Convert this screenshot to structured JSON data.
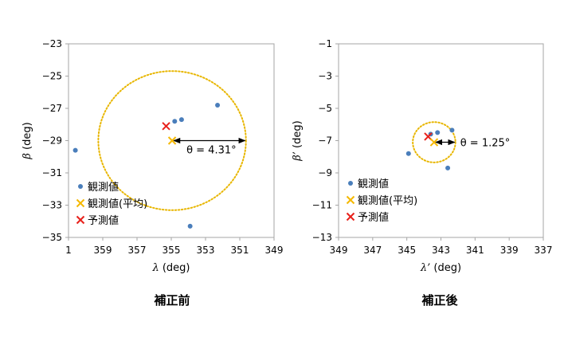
{
  "colors": {
    "observed": "#4a7ebb",
    "mean": "#f5b800",
    "predicted": "#e8211b",
    "circle": "#e8b600",
    "axis": "#a6a6a6",
    "arrow": "#000000"
  },
  "chart_data": [
    {
      "type": "scatter",
      "caption": "補正前",
      "xlabel_symbol": "λ",
      "xlabel_unit": "(deg)",
      "ylabel_symbol": "β",
      "ylabel_unit": "(deg)",
      "x_reversed": true,
      "xlim": [
        349,
        1
      ],
      "ylim": [
        -35,
        -23
      ],
      "x_ticks": [
        1,
        359,
        357,
        355,
        353,
        351,
        349
      ],
      "x_tick_labels": [
        "1",
        "359",
        "357",
        "355",
        "353",
        "351",
        "349"
      ],
      "y_ticks": [
        -23,
        -25,
        -27,
        -29,
        -31,
        -33,
        -35
      ],
      "y_tick_labels": [
        "−23",
        "−25",
        "−27",
        "−29",
        "−31",
        "−33",
        "−35"
      ],
      "observed": [
        [
          0.6,
          -29.6
        ],
        [
          354.8,
          -27.8
        ],
        [
          354.4,
          -27.7
        ],
        [
          352.3,
          -26.8
        ],
        [
          353.9,
          -34.3
        ]
      ],
      "mean": [
        354.95,
        -29.0
      ],
      "predicted": [
        355.3,
        -28.1
      ],
      "circle_radius": 4.31,
      "theta_label": "θ = 4.31°",
      "legend": [
        {
          "key": "observed",
          "label": "観測値"
        },
        {
          "key": "mean",
          "label": "観測値(平均)"
        },
        {
          "key": "predicted",
          "label": "予測値"
        }
      ],
      "legend_position": "bottom-left"
    },
    {
      "type": "scatter",
      "caption": "補正後",
      "xlabel_symbol": "λ’",
      "xlabel_unit": "(deg)",
      "ylabel_symbol": "β’",
      "ylabel_unit": "(deg)",
      "x_reversed": true,
      "xlim": [
        337,
        349
      ],
      "ylim": [
        -13,
        -1
      ],
      "x_ticks": [
        349,
        347,
        345,
        343,
        341,
        339,
        337
      ],
      "x_tick_labels": [
        "349",
        "347",
        "345",
        "343",
        "341",
        "339",
        "337"
      ],
      "y_ticks": [
        -1,
        -3,
        -5,
        -7,
        -9,
        -11,
        -13
      ],
      "y_tick_labels": [
        "−1",
        "−3",
        "−5",
        "−7",
        "−9",
        "−11",
        "−13"
      ],
      "observed": [
        [
          344.9,
          -7.8
        ],
        [
          343.6,
          -6.6
        ],
        [
          343.2,
          -6.5
        ],
        [
          342.35,
          -6.35
        ],
        [
          342.6,
          -8.7
        ]
      ],
      "mean": [
        343.4,
        -7.1
      ],
      "predicted": [
        343.75,
        -6.75
      ],
      "circle_radius": 1.25,
      "theta_label": "θ = 1.25°",
      "legend": [
        {
          "key": "observed",
          "label": "観測値"
        },
        {
          "key": "mean",
          "label": "観測値(平均)"
        },
        {
          "key": "predicted",
          "label": "予測値"
        }
      ],
      "legend_position": "bottom-left"
    }
  ]
}
